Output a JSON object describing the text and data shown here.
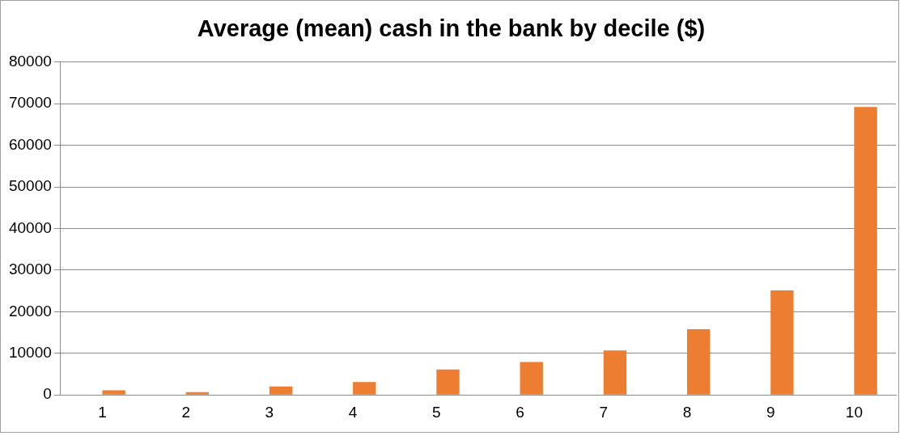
{
  "chart_data": {
    "type": "bar",
    "title": "Average (mean) cash in the bank by decile ($)",
    "categories": [
      "1",
      "2",
      "3",
      "4",
      "5",
      "6",
      "7",
      "8",
      "9",
      "10"
    ],
    "series": [
      {
        "color": "#4472c4",
        "values": [
          0,
          0,
          0,
          0,
          0,
          0,
          0,
          0,
          0,
          0
        ]
      },
      {
        "color": "#ed7d31",
        "values": [
          1100,
          660,
          2050,
          3080,
          6100,
          7930,
          10700,
          15800,
          25100,
          69200
        ]
      }
    ],
    "ylim": [
      0,
      80000
    ],
    "yticks": [
      0,
      10000,
      20000,
      30000,
      40000,
      50000,
      60000,
      70000,
      80000
    ],
    "grid": "y",
    "legend": false
  }
}
